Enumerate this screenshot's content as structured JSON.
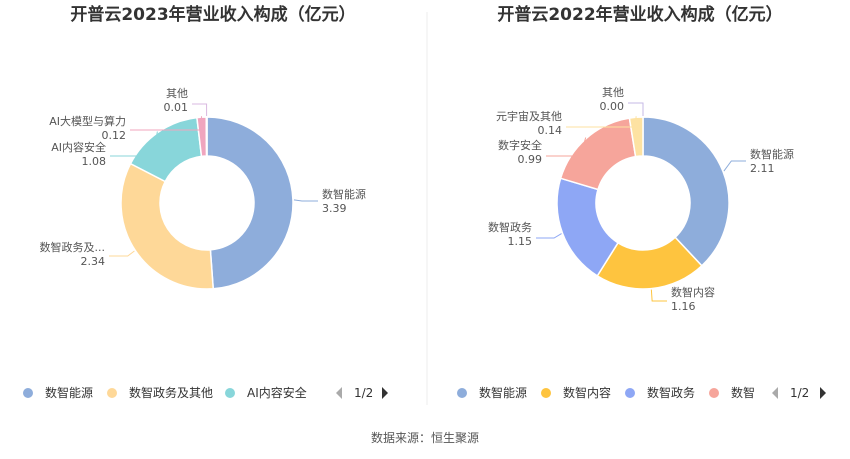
{
  "chart_data": [
    {
      "type": "pie",
      "title": "开普云2023年营业收入构成（亿元）",
      "categories": [
        "数智能源",
        "数智政务及其他",
        "AI内容安全",
        "AI大模型与算力",
        "其他"
      ],
      "labels": [
        "数智能源",
        "数智政务及...",
        "AI内容安全",
        "AI大模型与算力",
        "其他"
      ],
      "values": [
        3.39,
        2.34,
        1.08,
        0.12,
        0.01
      ],
      "value_labels": [
        "3.39",
        "2.34",
        "1.08",
        "0.12",
        "0.01"
      ],
      "colors": [
        "#8eaddb",
        "#fed898",
        "#88d6da",
        "#f0a5be",
        "#d9b8e0"
      ],
      "legend": {
        "placement": "bottom",
        "items": [
          {
            "label": "数智能源",
            "color": "#8eaddb"
          },
          {
            "label": "数智政务及其他",
            "color": "#fed898"
          },
          {
            "label": "AI内容安全",
            "color": "#88d6da"
          }
        ],
        "page": "1/2"
      }
    },
    {
      "type": "pie",
      "title": "开普云2022年营业收入构成（亿元）",
      "categories": [
        "数智能源",
        "数智内容",
        "数智政务",
        "数字安全",
        "元宇宙及其他",
        "其他"
      ],
      "labels": [
        "数智能源",
        "数智内容",
        "数智政务",
        "数字安全",
        "元宇宙及其他",
        "其他"
      ],
      "values": [
        2.11,
        1.16,
        1.15,
        0.99,
        0.14,
        0.0
      ],
      "value_labels": [
        "2.11",
        "1.16",
        "1.15",
        "0.99",
        "0.14",
        "0.00"
      ],
      "colors": [
        "#8eaddb",
        "#fec43f",
        "#8ea7f5",
        "#f6a59b",
        "#fde2a2",
        "#c6b8e6"
      ],
      "legend": {
        "placement": "bottom",
        "items": [
          {
            "label": "数智能源",
            "color": "#8eaddb"
          },
          {
            "label": "数智内容",
            "color": "#fec43f"
          },
          {
            "label": "数智政务",
            "color": "#8ea7f5"
          },
          {
            "label": "数智",
            "color": "#f6a59b"
          }
        ],
        "page": "1/2"
      }
    }
  ],
  "source": "数据来源：恒生聚源"
}
